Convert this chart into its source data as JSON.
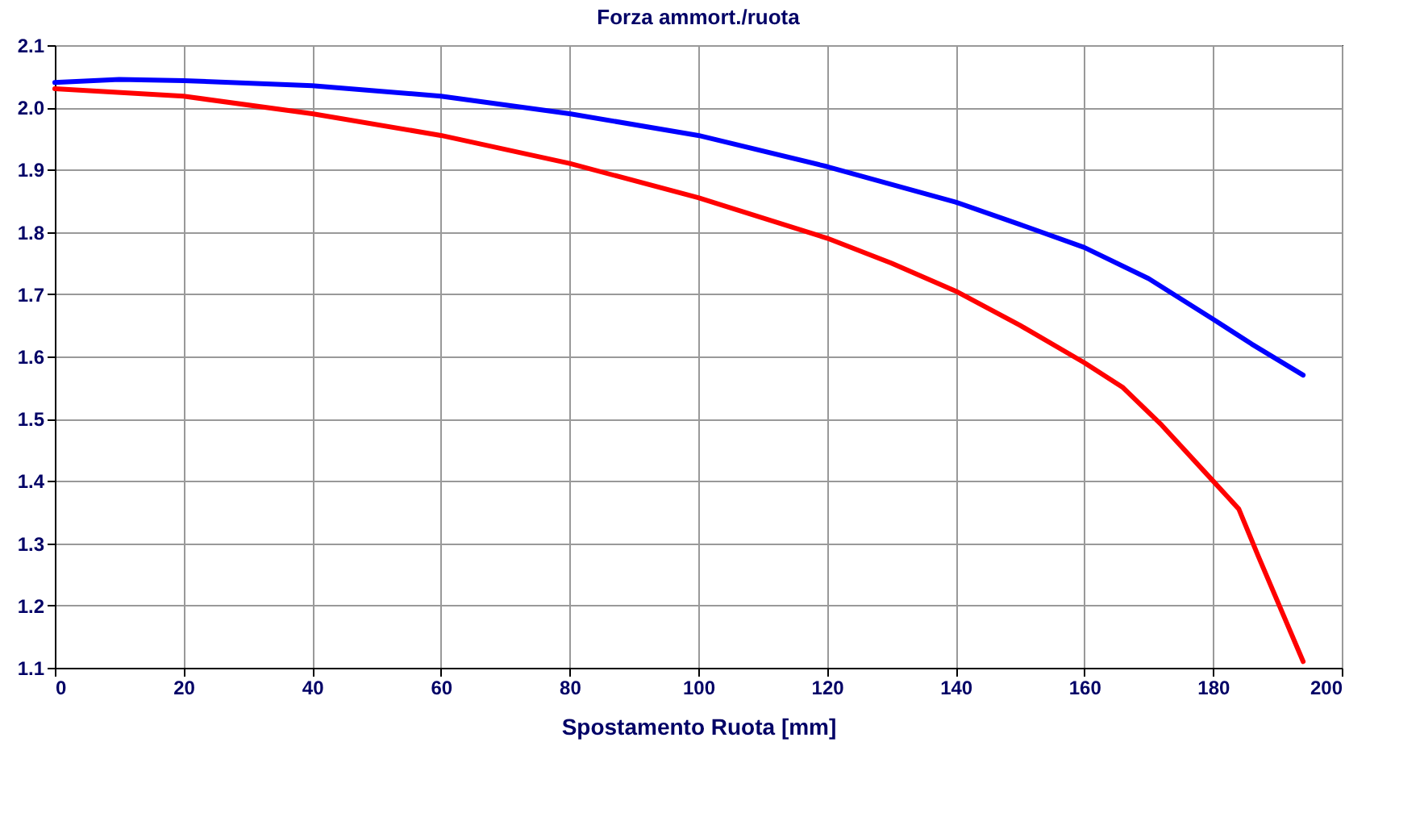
{
  "chart_data": {
    "type": "line",
    "title": "Forza ammort./ruota",
    "xlabel": "Spostamento Ruota [mm]",
    "xlim": [
      0,
      200
    ],
    "xticks": [
      0,
      20,
      40,
      60,
      80,
      100,
      120,
      140,
      160,
      180,
      200
    ],
    "ylim": [
      1.1,
      2.1
    ],
    "yticks": [
      1.1,
      1.2,
      1.3,
      1.4,
      1.5,
      1.6,
      1.7,
      1.8,
      1.9,
      {
        "value": 2.0,
        "label": "2.0"
      },
      2.1
    ],
    "grid": true,
    "legend": false,
    "marker": "none",
    "line_style": "solid",
    "series": [
      {
        "color": "#0000ff",
        "x": [
          0,
          10,
          20,
          40,
          60,
          80,
          100,
          120,
          140,
          150,
          160,
          170,
          180,
          186,
          194
        ],
        "values": [
          2.04,
          2.045,
          2.043,
          2.035,
          2.018,
          1.99,
          1.955,
          1.905,
          1.848,
          1.812,
          1.775,
          1.725,
          1.66,
          1.62,
          1.57
        ]
      },
      {
        "color": "#ff0000",
        "x": [
          0,
          20,
          40,
          60,
          80,
          100,
          120,
          130,
          140,
          150,
          160,
          166,
          172,
          180,
          184,
          187,
          194
        ],
        "values": [
          2.03,
          2.018,
          1.99,
          1.955,
          1.91,
          1.855,
          1.79,
          1.75,
          1.705,
          1.65,
          1.59,
          1.55,
          1.49,
          1.4,
          1.355,
          1.28,
          1.11
        ]
      }
    ]
  }
}
